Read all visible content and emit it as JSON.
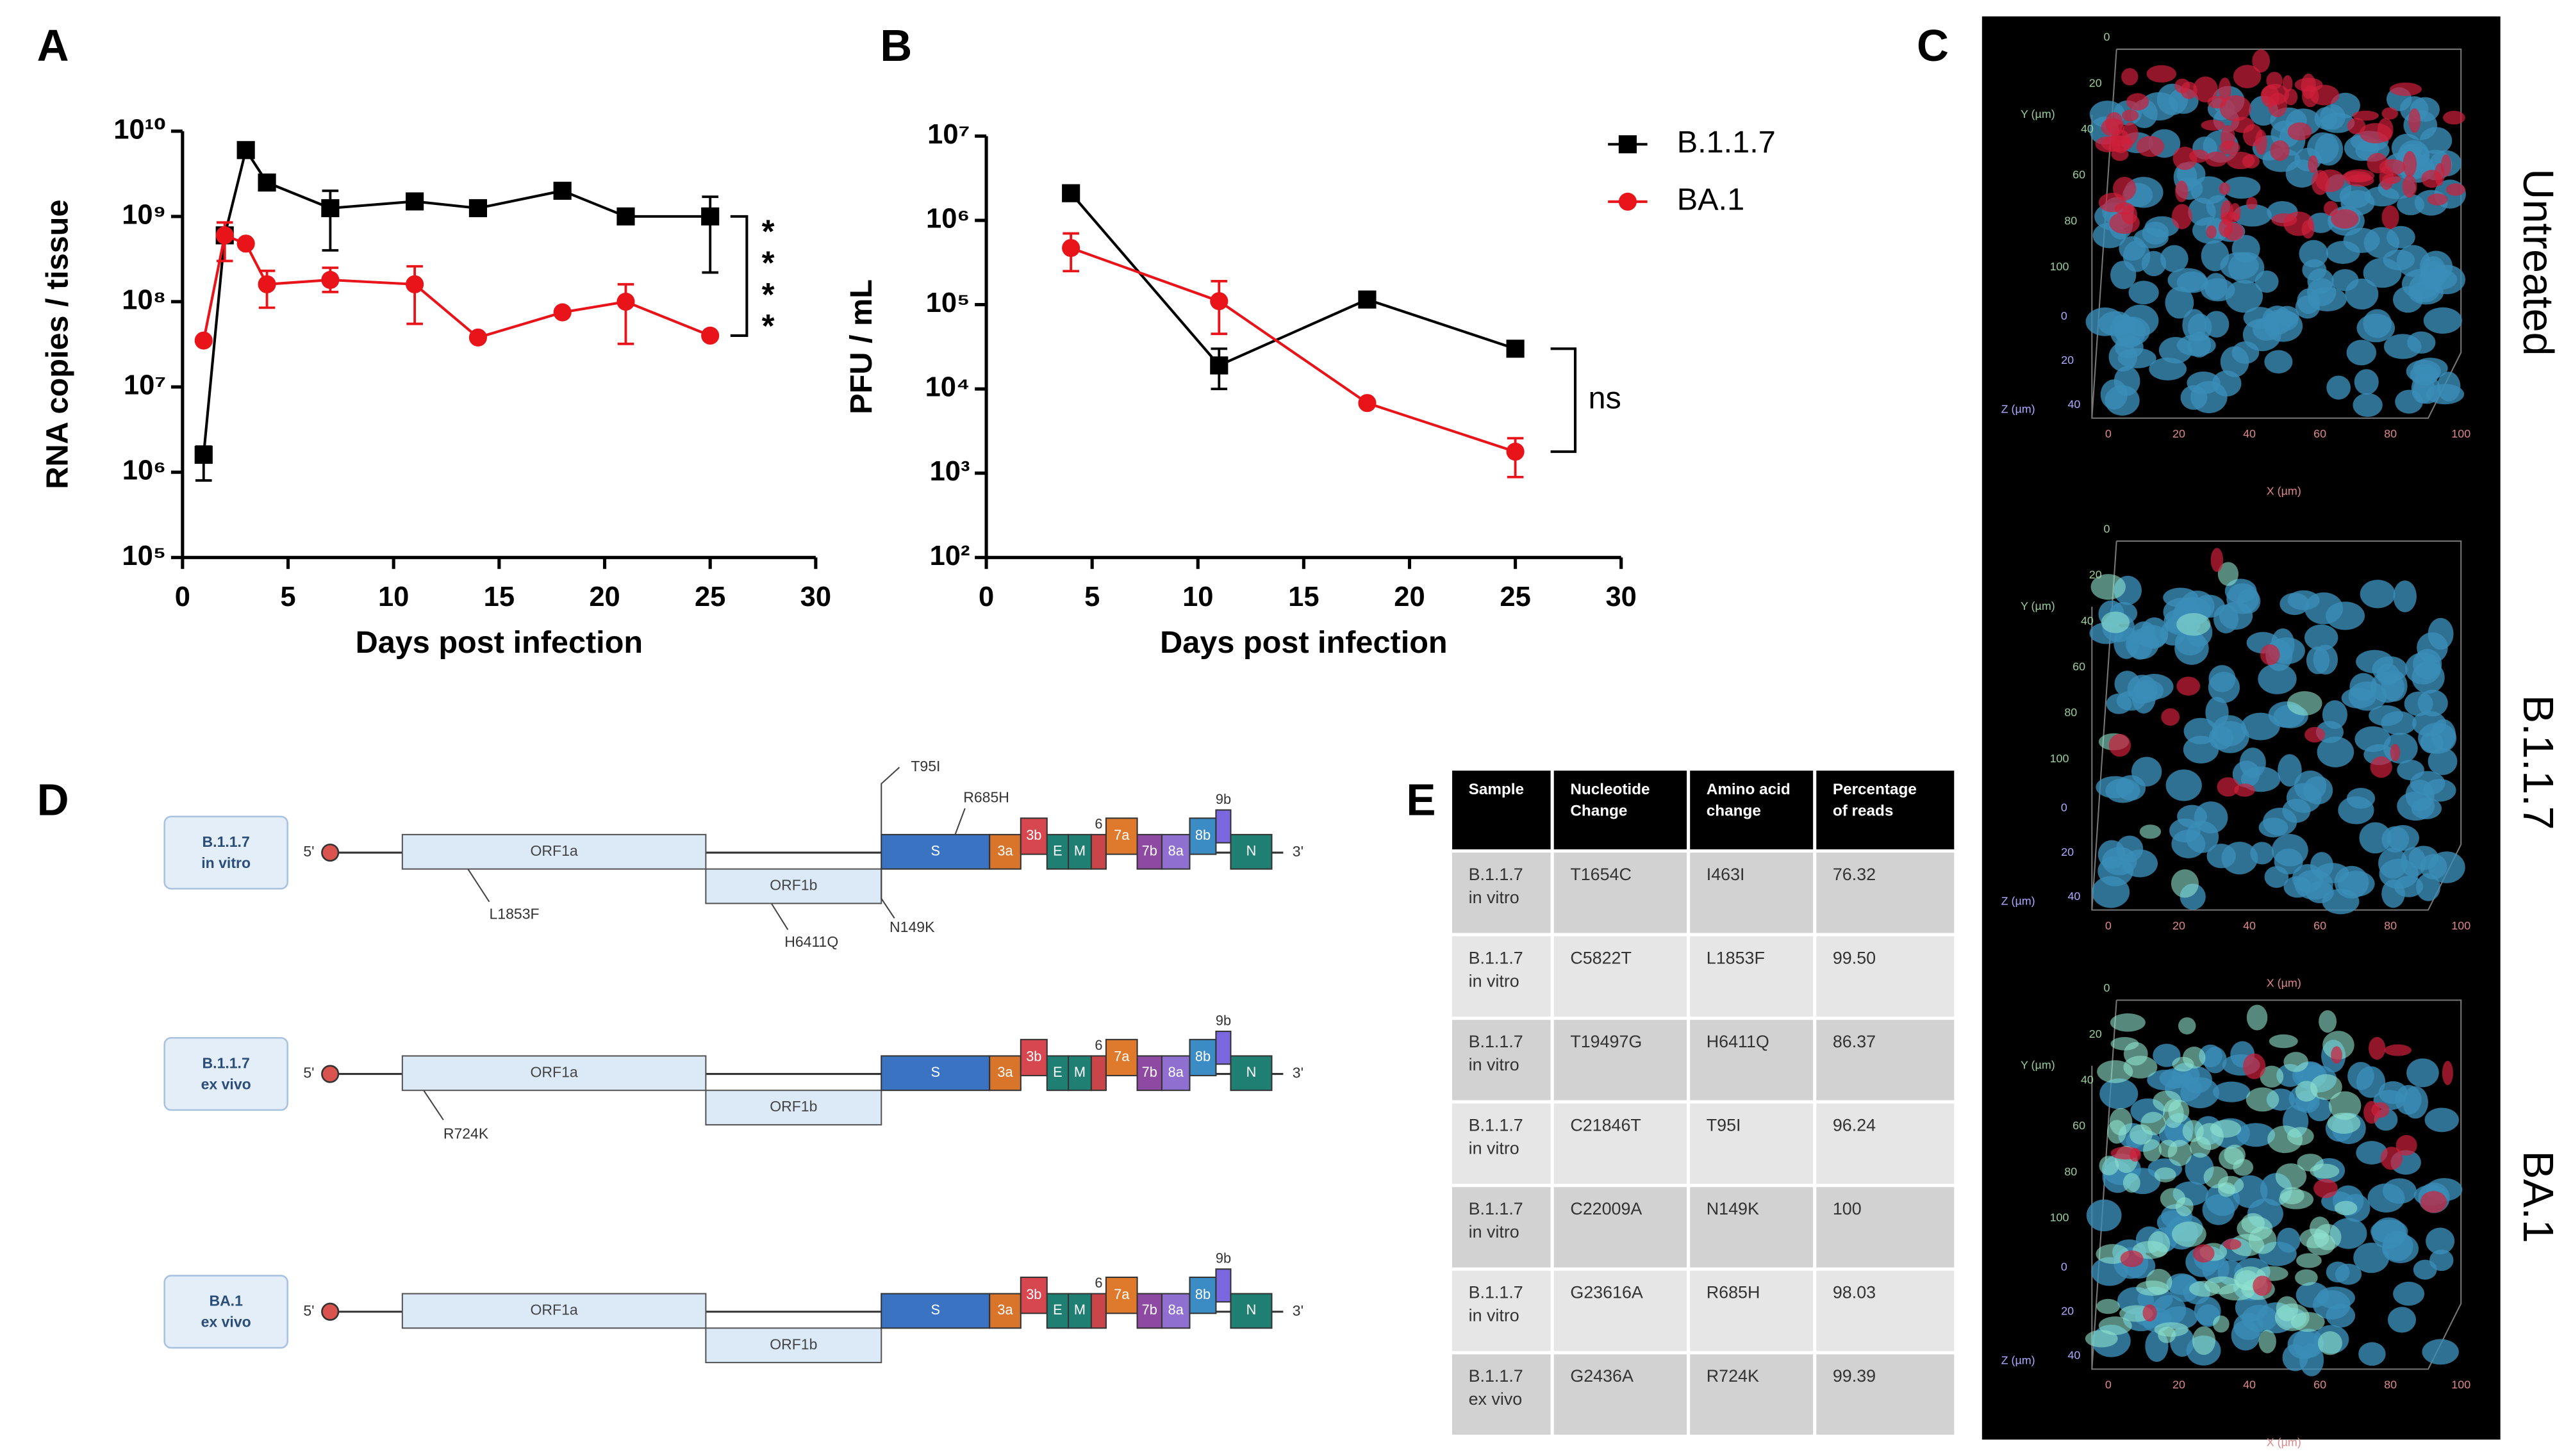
{
  "chart_data": [
    {
      "type": "line",
      "panel_label": "A",
      "xlabel": "Days post infection",
      "ylabel": "RNA copies / tissue",
      "log_y": true,
      "legend": false,
      "xlim": [
        0,
        30
      ],
      "xticks": [
        0,
        5,
        10,
        15,
        20,
        25,
        30
      ],
      "ylim": [
        100000,
        10000000000
      ],
      "yticks": [
        {
          "value": 100000,
          "label": "10⁵"
        },
        {
          "value": 1000000,
          "label": "10⁶"
        },
        {
          "value": 10000000,
          "label": "10⁷"
        },
        {
          "value": 100000000,
          "label": "10⁸"
        },
        {
          "value": 1000000000,
          "label": "10⁹"
        },
        {
          "value": 10000000000,
          "label": "10¹⁰"
        }
      ],
      "x": [
        1,
        2,
        3,
        4,
        7,
        11,
        14,
        18,
        21,
        25
      ],
      "series": [
        {
          "name": "B.1.1.7",
          "color": "#000000",
          "marker": "square",
          "values": [
            1600000,
            600000000,
            6000000000,
            2500000000,
            1250000000,
            1500000000,
            1250000000,
            2000000000,
            1000000000,
            1000000000
          ],
          "error_low": [
            800000,
            null,
            null,
            null,
            400000000,
            null,
            null,
            null,
            null,
            220000000
          ],
          "error_high": [
            2000000,
            null,
            null,
            null,
            2000000000,
            null,
            null,
            null,
            null,
            1700000000
          ]
        },
        {
          "name": "BA.1",
          "color": "#e8141a",
          "marker": "circle",
          "values": [
            35000000,
            600000000,
            480000000,
            160000000,
            180000000,
            160000000,
            38000000,
            75000000,
            100000000,
            40000000
          ],
          "error_low": [
            null,
            300000000,
            null,
            85000000,
            130000000,
            55000000,
            null,
            null,
            32000000,
            null
          ],
          "error_high": [
            null,
            850000000,
            null,
            230000000,
            250000000,
            260000000,
            null,
            null,
            160000000,
            null
          ]
        }
      ],
      "annotation": "****"
    },
    {
      "type": "line",
      "panel_label": "B",
      "xlabel": "Days post infection",
      "ylabel": "PFU / mL",
      "log_y": true,
      "legend": "top-right",
      "xlim": [
        0,
        30
      ],
      "xticks": [
        0,
        5,
        10,
        15,
        20,
        25,
        30
      ],
      "ylim": [
        100,
        10000000
      ],
      "yticks": [
        {
          "value": 100,
          "label": "10²"
        },
        {
          "value": 1000,
          "label": "10³"
        },
        {
          "value": 10000,
          "label": "10⁴"
        },
        {
          "value": 100000,
          "label": "10⁵"
        },
        {
          "value": 1000000,
          "label": "10⁶"
        },
        {
          "value": 10000000,
          "label": "10⁷"
        }
      ],
      "x": [
        4,
        11,
        18,
        25
      ],
      "series": [
        {
          "name": "B.1.1.7",
          "color": "#000000",
          "marker": "square",
          "values": [
            2100000,
            19000,
            115000,
            30000
          ],
          "error_low": [
            null,
            10000,
            null,
            null
          ],
          "error_high": [
            null,
            30000,
            null,
            null
          ]
        },
        {
          "name": "BA.1",
          "color": "#e8141a",
          "marker": "circle",
          "values": [
            470000,
            110000,
            6800,
            1800
          ],
          "error_low": [
            250000,
            45000,
            null,
            900
          ],
          "error_high": [
            700000,
            190000,
            null,
            2600
          ]
        }
      ],
      "annotation": "ns"
    }
  ],
  "imaging": {
    "panel_label": "C",
    "images": [
      {
        "label": "Untreated"
      },
      {
        "label": "B.1.1.7"
      },
      {
        "label": "BA.1"
      }
    ],
    "x_axis": "X (µm)",
    "y_axis": "Y (µm)",
    "z_axis": "Z (µm)",
    "xy_ticks": [
      "0",
      "20",
      "40",
      "60",
      "80",
      "100"
    ],
    "z_ticks": [
      "0",
      "20",
      "40"
    ]
  },
  "genome": {
    "panel_label": "D",
    "five_prime": "5'",
    "three_prime": "3'",
    "genes": [
      {
        "name": "ORF1a",
        "color": "#dceaf8"
      },
      {
        "name": "ORF1b",
        "color": "#dceaf8"
      },
      {
        "name": "S",
        "color": "#3b73c3"
      },
      {
        "name": "3a",
        "color": "#d9742b"
      },
      {
        "name": "3b",
        "color": "#d6474f"
      },
      {
        "name": "E",
        "color": "#1f7f73"
      },
      {
        "name": "M",
        "color": "#1f7f73"
      },
      {
        "name": "6",
        "color": "#c8464a"
      },
      {
        "name": "7a",
        "color": "#df7a2c"
      },
      {
        "name": "7b",
        "color": "#8e4aa2"
      },
      {
        "name": "8a",
        "color": "#8f6fd0"
      },
      {
        "name": "8b",
        "color": "#3b8cc4"
      },
      {
        "name": "9b",
        "color": "#7b68e0"
      },
      {
        "name": "N",
        "color": "#1f7f73"
      }
    ],
    "rows": [
      {
        "label": [
          "B.1.1.7",
          "in vitro"
        ],
        "mutations": [
          "T95I",
          "R685H",
          "L1853F",
          "H6411Q",
          "N149K"
        ]
      },
      {
        "label": [
          "B.1.1.7",
          "ex vivo"
        ],
        "mutations": [
          "R724K"
        ]
      },
      {
        "label": [
          "BA.1",
          "ex vivo"
        ],
        "mutations": []
      }
    ]
  },
  "table": {
    "panel_label": "E",
    "header": [
      [
        "Sample"
      ],
      [
        "Nucleotide",
        "Change"
      ],
      [
        "Amino acid",
        "change"
      ],
      [
        "Percentage",
        "of reads"
      ]
    ],
    "rows": [
      [
        [
          "B.1.1.7",
          "in vitro"
        ],
        [
          "T1654C"
        ],
        [
          "I463I"
        ],
        [
          "76.32"
        ]
      ],
      [
        [
          "B.1.1.7",
          "in vitro"
        ],
        [
          "C5822T"
        ],
        [
          "L1853F"
        ],
        [
          "99.50"
        ]
      ],
      [
        [
          "B.1.1.7",
          "in vitro"
        ],
        [
          "T19497G"
        ],
        [
          "H6411Q"
        ],
        [
          "86.37"
        ]
      ],
      [
        [
          "B.1.1.7",
          "in vitro"
        ],
        [
          "C21846T"
        ],
        [
          "T95I"
        ],
        [
          "96.24"
        ]
      ],
      [
        [
          "B.1.1.7",
          "in vitro"
        ],
        [
          "C22009A"
        ],
        [
          "N149K"
        ],
        [
          "100"
        ]
      ],
      [
        [
          "B.1.1.7",
          "in vitro"
        ],
        [
          "G23616A"
        ],
        [
          "R685H"
        ],
        [
          "98.03"
        ]
      ],
      [
        [
          "B.1.1.7",
          "ex vivo"
        ],
        [
          "G2436A"
        ],
        [
          "R724K"
        ],
        [
          "99.39"
        ]
      ]
    ]
  }
}
